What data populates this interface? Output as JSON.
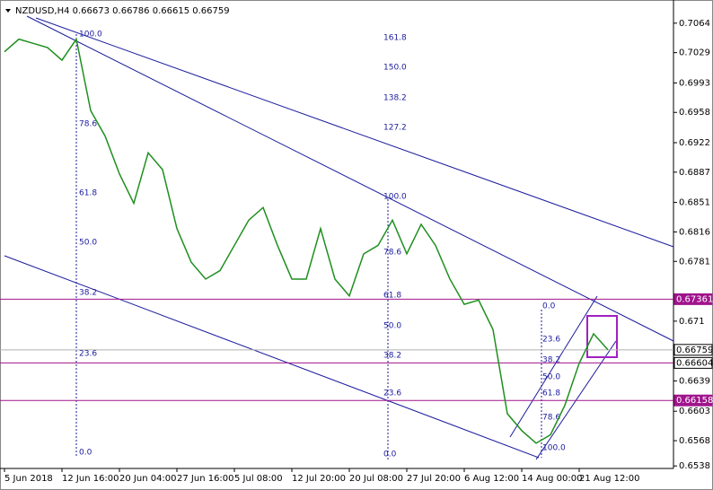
{
  "chart_data": {
    "type": "line",
    "title": "NZDUSD,H4 0.66673 0.66786 0.66615 0.66759",
    "categories": [
      "5 Jun 2018",
      null,
      null,
      null,
      "12 Jun 16:00",
      null,
      null,
      null,
      "20 Jun 04:00",
      null,
      null,
      null,
      "27 Jun 16:00",
      null,
      null,
      null,
      "5 Jul 08:00",
      null,
      null,
      null,
      "12 Jul 20:00",
      null,
      null,
      null,
      "20 Jul 08:00",
      null,
      null,
      null,
      "27 Jul 20:00",
      null,
      null,
      null,
      "6 Aug 12:00",
      null,
      null,
      null,
      "14 Aug 00:00",
      null,
      null,
      null,
      "21 Aug 12:00",
      null,
      null
    ],
    "series": [
      {
        "color": "#1f8f1f",
        "values": [
          0.703,
          0.7045,
          0.704,
          0.7035,
          0.702,
          0.7045,
          0.696,
          0.693,
          0.6885,
          0.685,
          0.691,
          0.689,
          0.682,
          0.678,
          0.676,
          0.677,
          0.68,
          0.683,
          0.6845,
          0.68,
          0.676,
          0.676,
          0.682,
          0.676,
          0.674,
          0.679,
          0.68,
          0.683,
          0.679,
          0.6825,
          0.68,
          0.676,
          0.673,
          0.6735,
          0.67,
          0.66,
          0.658,
          0.6565,
          0.6575,
          0.661,
          0.666,
          0.6695,
          0.6676
        ]
      }
    ],
    "ylim": [
      0.6535,
      0.7083
    ],
    "yticks": [
      0.7064,
      0.7029,
      0.6993,
      0.6958,
      0.6922,
      0.6887,
      0.6851,
      0.6816,
      0.6781,
      0.671,
      0.6639,
      0.6603,
      0.6568,
      0.6538
    ],
    "levels": [
      {
        "value": 0.67361,
        "color": "#a0148c",
        "boxed": true
      },
      {
        "value": 0.66604,
        "color": "#a0148c",
        "boxed": false
      },
      {
        "value": 0.66158,
        "color": "#a0148c",
        "boxed": true
      },
      {
        "value": 0.66759,
        "color": "#b0b0b0",
        "boxed": false
      }
    ],
    "fibo": [
      [
        "100.0",
        "78.6",
        "61.8",
        "50.0",
        "38.2",
        "23.6",
        "0.0"
      ],
      [
        "161.8",
        "150.0",
        "138.2",
        "127.2",
        "100.0",
        "78.6",
        "61.8",
        "50.0",
        "38.2",
        "23.6",
        "0.0"
      ],
      [
        "0.0",
        "23.6",
        "38.2",
        "50.0",
        "61.8",
        "78.6",
        "100.0"
      ]
    ]
  }
}
